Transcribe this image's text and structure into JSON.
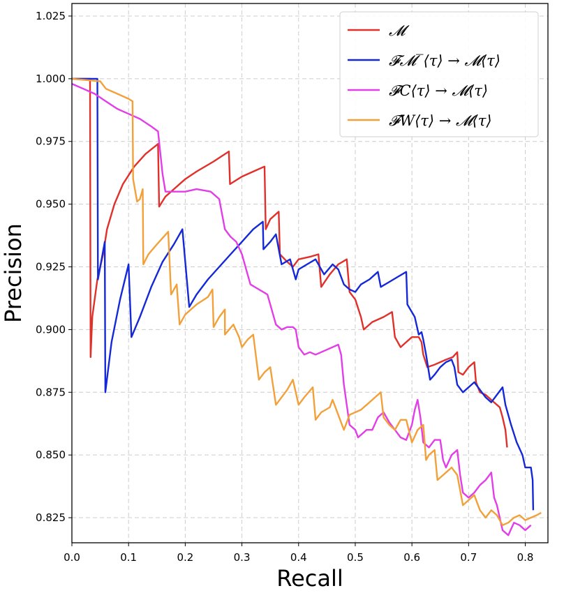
{
  "chart_data": {
    "type": "line",
    "xlabel": "Recall",
    "ylabel": "Precision",
    "xlim": [
      0.0,
      0.84
    ],
    "ylim": [
      0.815,
      1.03
    ],
    "xticks": [
      "0.0",
      "0.1",
      "0.2",
      "0.3",
      "0.4",
      "0.5",
      "0.6",
      "0.7",
      "0.8"
    ],
    "yticks": [
      "0.825",
      "0.850",
      "0.875",
      "0.900",
      "0.925",
      "0.950",
      "0.975",
      "1.000",
      "1.025"
    ],
    "grid": true,
    "legend_position": "top-right",
    "series": [
      {
        "name": "𝓜",
        "color": "#e0302a",
        "points": [
          [
            0.0,
            1.0
          ],
          [
            0.032,
            1.0
          ],
          [
            0.033,
            0.889
          ],
          [
            0.036,
            0.905
          ],
          [
            0.045,
            0.92
          ],
          [
            0.055,
            0.93
          ],
          [
            0.062,
            0.94
          ],
          [
            0.075,
            0.95
          ],
          [
            0.09,
            0.958
          ],
          [
            0.11,
            0.965
          ],
          [
            0.13,
            0.97
          ],
          [
            0.152,
            0.974
          ],
          [
            0.154,
            0.949
          ],
          [
            0.165,
            0.953
          ],
          [
            0.18,
            0.956
          ],
          [
            0.2,
            0.96
          ],
          [
            0.22,
            0.963
          ],
          [
            0.25,
            0.967
          ],
          [
            0.277,
            0.971
          ],
          [
            0.279,
            0.958
          ],
          [
            0.3,
            0.961
          ],
          [
            0.32,
            0.963
          ],
          [
            0.34,
            0.965
          ],
          [
            0.342,
            0.94
          ],
          [
            0.35,
            0.944
          ],
          [
            0.365,
            0.947
          ],
          [
            0.367,
            0.93
          ],
          [
            0.38,
            0.927
          ],
          [
            0.39,
            0.925
          ],
          [
            0.4,
            0.928
          ],
          [
            0.42,
            0.929
          ],
          [
            0.435,
            0.93
          ],
          [
            0.44,
            0.917
          ],
          [
            0.455,
            0.922
          ],
          [
            0.47,
            0.926
          ],
          [
            0.485,
            0.928
          ],
          [
            0.49,
            0.915
          ],
          [
            0.5,
            0.912
          ],
          [
            0.51,
            0.905
          ],
          [
            0.515,
            0.9
          ],
          [
            0.53,
            0.903
          ],
          [
            0.55,
            0.905
          ],
          [
            0.565,
            0.907
          ],
          [
            0.57,
            0.897
          ],
          [
            0.58,
            0.893
          ],
          [
            0.59,
            0.895
          ],
          [
            0.6,
            0.897
          ],
          [
            0.612,
            0.897
          ],
          [
            0.617,
            0.895
          ],
          [
            0.62,
            0.89
          ],
          [
            0.627,
            0.885
          ],
          [
            0.64,
            0.886
          ],
          [
            0.65,
            0.887
          ],
          [
            0.66,
            0.888
          ],
          [
            0.672,
            0.889
          ],
          [
            0.68,
            0.891
          ],
          [
            0.682,
            0.883
          ],
          [
            0.69,
            0.882
          ],
          [
            0.7,
            0.885
          ],
          [
            0.71,
            0.887
          ],
          [
            0.713,
            0.879
          ],
          [
            0.72,
            0.875
          ],
          [
            0.73,
            0.874
          ],
          [
            0.74,
            0.872
          ],
          [
            0.75,
            0.87
          ],
          [
            0.755,
            0.869
          ],
          [
            0.76,
            0.865
          ],
          [
            0.765,
            0.86
          ],
          [
            0.768,
            0.853
          ]
        ]
      },
      {
        "name": "𝓕𝓜‾⟨τ⟩ → 𝓜⟨τ⟩",
        "color": "#1428d8",
        "points": [
          [
            0.0,
            1.0
          ],
          [
            0.045,
            1.0
          ],
          [
            0.046,
            0.92
          ],
          [
            0.058,
            0.935
          ],
          [
            0.059,
            0.875
          ],
          [
            0.07,
            0.895
          ],
          [
            0.085,
            0.912
          ],
          [
            0.1,
            0.926
          ],
          [
            0.105,
            0.897
          ],
          [
            0.12,
            0.905
          ],
          [
            0.14,
            0.917
          ],
          [
            0.16,
            0.927
          ],
          [
            0.18,
            0.934
          ],
          [
            0.195,
            0.94
          ],
          [
            0.207,
            0.909
          ],
          [
            0.22,
            0.914
          ],
          [
            0.24,
            0.92
          ],
          [
            0.26,
            0.925
          ],
          [
            0.28,
            0.93
          ],
          [
            0.3,
            0.935
          ],
          [
            0.32,
            0.94
          ],
          [
            0.337,
            0.943
          ],
          [
            0.338,
            0.932
          ],
          [
            0.35,
            0.935
          ],
          [
            0.36,
            0.938
          ],
          [
            0.37,
            0.926
          ],
          [
            0.385,
            0.928
          ],
          [
            0.395,
            0.92
          ],
          [
            0.4,
            0.924
          ],
          [
            0.415,
            0.926
          ],
          [
            0.43,
            0.928
          ],
          [
            0.445,
            0.922
          ],
          [
            0.46,
            0.926
          ],
          [
            0.47,
            0.924
          ],
          [
            0.48,
            0.918
          ],
          [
            0.49,
            0.916
          ],
          [
            0.5,
            0.915
          ],
          [
            0.51,
            0.918
          ],
          [
            0.525,
            0.92
          ],
          [
            0.54,
            0.923
          ],
          [
            0.545,
            0.917
          ],
          [
            0.56,
            0.919
          ],
          [
            0.575,
            0.921
          ],
          [
            0.59,
            0.923
          ],
          [
            0.592,
            0.91
          ],
          [
            0.605,
            0.905
          ],
          [
            0.612,
            0.898
          ],
          [
            0.617,
            0.899
          ],
          [
            0.62,
            0.896
          ],
          [
            0.625,
            0.89
          ],
          [
            0.632,
            0.88
          ],
          [
            0.64,
            0.882
          ],
          [
            0.65,
            0.885
          ],
          [
            0.66,
            0.887
          ],
          [
            0.67,
            0.888
          ],
          [
            0.675,
            0.885
          ],
          [
            0.68,
            0.878
          ],
          [
            0.69,
            0.875
          ],
          [
            0.7,
            0.877
          ],
          [
            0.71,
            0.879
          ],
          [
            0.72,
            0.876
          ],
          [
            0.73,
            0.873
          ],
          [
            0.74,
            0.871
          ],
          [
            0.75,
            0.874
          ],
          [
            0.76,
            0.877
          ],
          [
            0.765,
            0.87
          ],
          [
            0.775,
            0.862
          ],
          [
            0.785,
            0.855
          ],
          [
            0.795,
            0.85
          ],
          [
            0.8,
            0.845
          ],
          [
            0.81,
            0.845
          ],
          [
            0.813,
            0.84
          ],
          [
            0.814,
            0.828
          ]
        ]
      },
      {
        "name": "𝓕C⟨τ⟩ → 𝓜⟨τ⟩",
        "color": "#e23ee8",
        "points": [
          [
            0.0,
            0.998
          ],
          [
            0.02,
            0.996
          ],
          [
            0.04,
            0.994
          ],
          [
            0.06,
            0.991
          ],
          [
            0.08,
            0.988
          ],
          [
            0.1,
            0.986
          ],
          [
            0.12,
            0.984
          ],
          [
            0.14,
            0.981
          ],
          [
            0.152,
            0.979
          ],
          [
            0.16,
            0.962
          ],
          [
            0.165,
            0.955
          ],
          [
            0.18,
            0.955
          ],
          [
            0.2,
            0.955
          ],
          [
            0.22,
            0.956
          ],
          [
            0.245,
            0.955
          ],
          [
            0.26,
            0.952
          ],
          [
            0.27,
            0.94
          ],
          [
            0.28,
            0.937
          ],
          [
            0.29,
            0.935
          ],
          [
            0.3,
            0.93
          ],
          [
            0.31,
            0.922
          ],
          [
            0.315,
            0.918
          ],
          [
            0.33,
            0.916
          ],
          [
            0.345,
            0.914
          ],
          [
            0.35,
            0.91
          ],
          [
            0.36,
            0.902
          ],
          [
            0.37,
            0.9
          ],
          [
            0.38,
            0.901
          ],
          [
            0.39,
            0.901
          ],
          [
            0.395,
            0.9
          ],
          [
            0.4,
            0.893
          ],
          [
            0.41,
            0.89
          ],
          [
            0.42,
            0.891
          ],
          [
            0.43,
            0.89
          ],
          [
            0.45,
            0.892
          ],
          [
            0.47,
            0.894
          ],
          [
            0.475,
            0.89
          ],
          [
            0.48,
            0.878
          ],
          [
            0.49,
            0.862
          ],
          [
            0.5,
            0.86
          ],
          [
            0.505,
            0.857
          ],
          [
            0.52,
            0.86
          ],
          [
            0.53,
            0.86
          ],
          [
            0.54,
            0.865
          ],
          [
            0.55,
            0.867
          ],
          [
            0.56,
            0.863
          ],
          [
            0.57,
            0.86
          ],
          [
            0.58,
            0.857
          ],
          [
            0.59,
            0.856
          ],
          [
            0.6,
            0.862
          ],
          [
            0.605,
            0.868
          ],
          [
            0.61,
            0.872
          ],
          [
            0.615,
            0.865
          ],
          [
            0.62,
            0.855
          ],
          [
            0.63,
            0.853
          ],
          [
            0.64,
            0.856
          ],
          [
            0.65,
            0.856
          ],
          [
            0.655,
            0.848
          ],
          [
            0.66,
            0.845
          ],
          [
            0.67,
            0.85
          ],
          [
            0.68,
            0.852
          ],
          [
            0.685,
            0.842
          ],
          [
            0.69,
            0.835
          ],
          [
            0.7,
            0.833
          ],
          [
            0.71,
            0.835
          ],
          [
            0.72,
            0.838
          ],
          [
            0.73,
            0.84
          ],
          [
            0.74,
            0.843
          ],
          [
            0.745,
            0.833
          ],
          [
            0.75,
            0.83
          ],
          [
            0.76,
            0.82
          ],
          [
            0.77,
            0.818
          ],
          [
            0.78,
            0.823
          ],
          [
            0.79,
            0.822
          ],
          [
            0.8,
            0.82
          ],
          [
            0.81,
            0.822
          ]
        ]
      },
      {
        "name": "𝓕W⟨τ⟩ → 𝓜⟨τ⟩",
        "color": "#f2a13a",
        "points": [
          [
            0.0,
            1.0
          ],
          [
            0.05,
            0.999
          ],
          [
            0.06,
            0.996
          ],
          [
            0.08,
            0.994
          ],
          [
            0.1,
            0.992
          ],
          [
            0.107,
            0.991
          ],
          [
            0.108,
            0.96
          ],
          [
            0.115,
            0.951
          ],
          [
            0.12,
            0.952
          ],
          [
            0.125,
            0.956
          ],
          [
            0.126,
            0.926
          ],
          [
            0.135,
            0.93
          ],
          [
            0.15,
            0.934
          ],
          [
            0.17,
            0.939
          ],
          [
            0.175,
            0.914
          ],
          [
            0.185,
            0.918
          ],
          [
            0.19,
            0.902
          ],
          [
            0.2,
            0.906
          ],
          [
            0.22,
            0.91
          ],
          [
            0.24,
            0.913
          ],
          [
            0.248,
            0.916
          ],
          [
            0.25,
            0.901
          ],
          [
            0.26,
            0.905
          ],
          [
            0.27,
            0.908
          ],
          [
            0.27,
            0.898
          ],
          [
            0.285,
            0.902
          ],
          [
            0.295,
            0.897
          ],
          [
            0.3,
            0.893
          ],
          [
            0.31,
            0.896
          ],
          [
            0.32,
            0.898
          ],
          [
            0.33,
            0.88
          ],
          [
            0.34,
            0.883
          ],
          [
            0.35,
            0.885
          ],
          [
            0.36,
            0.87
          ],
          [
            0.37,
            0.873
          ],
          [
            0.38,
            0.876
          ],
          [
            0.39,
            0.88
          ],
          [
            0.4,
            0.87
          ],
          [
            0.41,
            0.873
          ],
          [
            0.425,
            0.877
          ],
          [
            0.43,
            0.864
          ],
          [
            0.44,
            0.867
          ],
          [
            0.455,
            0.869
          ],
          [
            0.46,
            0.872
          ],
          [
            0.48,
            0.86
          ],
          [
            0.49,
            0.866
          ],
          [
            0.5,
            0.867
          ],
          [
            0.51,
            0.868
          ],
          [
            0.52,
            0.87
          ],
          [
            0.53,
            0.872
          ],
          [
            0.545,
            0.875
          ],
          [
            0.55,
            0.865
          ],
          [
            0.56,
            0.862
          ],
          [
            0.57,
            0.86
          ],
          [
            0.575,
            0.862
          ],
          [
            0.58,
            0.864
          ],
          [
            0.59,
            0.864
          ],
          [
            0.6,
            0.855
          ],
          [
            0.61,
            0.86
          ],
          [
            0.62,
            0.862
          ],
          [
            0.625,
            0.848
          ],
          [
            0.63,
            0.85
          ],
          [
            0.64,
            0.852
          ],
          [
            0.645,
            0.84
          ],
          [
            0.66,
            0.843
          ],
          [
            0.67,
            0.845
          ],
          [
            0.68,
            0.842
          ],
          [
            0.69,
            0.83
          ],
          [
            0.7,
            0.832
          ],
          [
            0.71,
            0.834
          ],
          [
            0.72,
            0.828
          ],
          [
            0.73,
            0.825
          ],
          [
            0.74,
            0.828
          ],
          [
            0.75,
            0.826
          ],
          [
            0.76,
            0.822
          ],
          [
            0.77,
            0.823
          ],
          [
            0.78,
            0.825
          ],
          [
            0.79,
            0.826
          ],
          [
            0.8,
            0.824
          ],
          [
            0.81,
            0.825
          ],
          [
            0.82,
            0.826
          ],
          [
            0.828,
            0.827
          ]
        ]
      }
    ]
  }
}
